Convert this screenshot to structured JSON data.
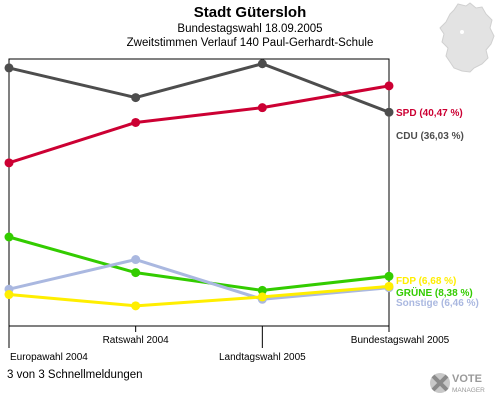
{
  "title": "Stadt Gütersloh",
  "subtitle1": "Bundestagswahl 18.09.2005",
  "subtitle2": "Zweitstimmen Verlauf 140 Paul-Gerhardt-Schule",
  "footer": "3 von 3 Schnellmeldungen",
  "logo_text": "VOTE MANAGER",
  "chart_data": {
    "type": "line",
    "categories": [
      "Europawahl 2004",
      "Ratswahl 2004",
      "Landtagswahl 2005",
      "Bundestagswahl 2005"
    ],
    "ylim": [
      0,
      45
    ],
    "grid": false,
    "series": [
      {
        "name": "CDU (36,03 %)",
        "color": "#4d4d4d",
        "values": [
          43.5,
          38.5,
          44.2,
          36.03
        ]
      },
      {
        "name": "SPD (40,47 %)",
        "color": "#cc0033",
        "values": [
          27.5,
          34.3,
          36.8,
          40.47
        ]
      },
      {
        "name": "GRÜNE (8,38 %)",
        "color": "#33cc00",
        "values": [
          15.0,
          9.0,
          6.0,
          8.38
        ]
      },
      {
        "name": "Sonstige (6,46 %)",
        "color": "#aab8e0",
        "values": [
          6.2,
          11.2,
          4.5,
          6.46
        ]
      },
      {
        "name": "FDP (6,68 %)",
        "color": "#ffee00",
        "values": [
          5.3,
          3.4,
          4.9,
          6.68
        ]
      }
    ]
  }
}
